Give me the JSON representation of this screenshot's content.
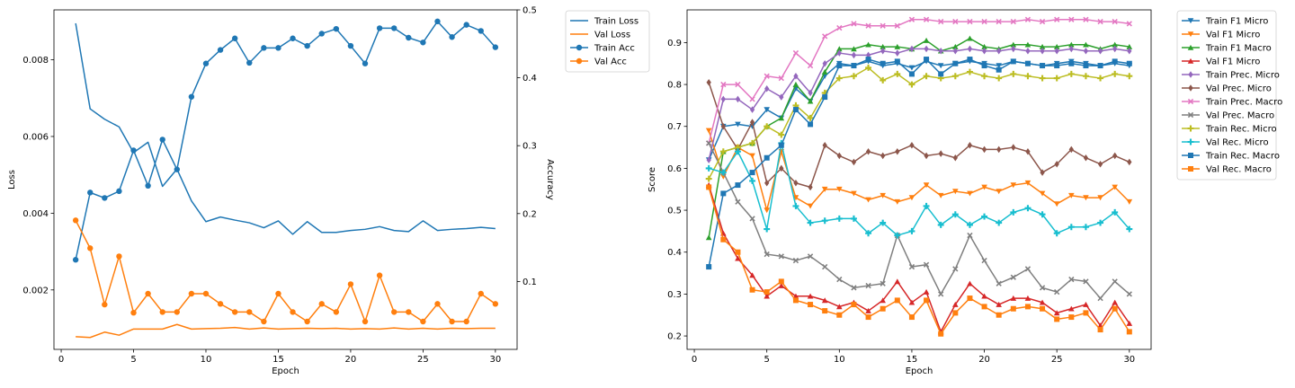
{
  "colors": {
    "blue": "#1f77b4",
    "orange": "#ff7f0e",
    "green": "#2ca02c",
    "red": "#d62728",
    "purple": "#9467bd",
    "brown": "#8c564b",
    "pink": "#e377c2",
    "gray": "#7f7f7f",
    "olive": "#bcbd22",
    "cyan": "#17becf"
  },
  "chart_data": [
    {
      "type": "line",
      "xlabel": "Epoch",
      "ylabel": "Loss",
      "y2label": "Accuracy",
      "xlim": [
        -0.5,
        31.5
      ],
      "ylim": [
        0.00045,
        0.0093
      ],
      "y2lim": [
        0,
        0.5
      ],
      "xticks": [
        0,
        5,
        10,
        15,
        20,
        25,
        30
      ],
      "yticks": [
        0.002,
        0.004,
        0.006,
        0.008
      ],
      "ytick_labels": [
        "0.002",
        "0.004",
        "0.006",
        "0.008"
      ],
      "y2ticks": [
        0.1,
        0.2,
        0.3,
        0.4,
        0.5
      ],
      "y2tick_labels": [
        "0.1",
        "0.2",
        "0.3",
        "0.4",
        "0.5"
      ],
      "legend_position": "outside-right",
      "x": [
        1,
        2,
        3,
        4,
        5,
        6,
        7,
        8,
        9,
        10,
        11,
        12,
        13,
        14,
        15,
        16,
        17,
        18,
        19,
        20,
        21,
        22,
        23,
        24,
        25,
        26,
        27,
        28,
        29,
        30
      ],
      "series": [
        {
          "name": "Train Loss",
          "axis": "left",
          "color": "blue",
          "marker": "none",
          "values": [
            0.00895,
            0.00672,
            0.00645,
            0.00625,
            0.00558,
            0.00585,
            0.0047,
            0.00515,
            0.00432,
            0.00378,
            0.0039,
            0.00382,
            0.00375,
            0.00362,
            0.0038,
            0.00345,
            0.00378,
            0.0035,
            0.0035,
            0.00355,
            0.00358,
            0.00365,
            0.00355,
            0.00352,
            0.0038,
            0.00355,
            0.00358,
            0.0036,
            0.00363,
            0.0036
          ]
        },
        {
          "name": "Val Loss",
          "axis": "left",
          "color": "orange",
          "marker": "none",
          "values": [
            0.00078,
            0.00076,
            0.0009,
            0.00082,
            0.00098,
            0.00098,
            0.00098,
            0.0011,
            0.00098,
            0.00099,
            0.001,
            0.00102,
            0.00098,
            0.00101,
            0.00098,
            0.00099,
            0.001,
            0.00099,
            0.001,
            0.00098,
            0.00099,
            0.00098,
            0.00101,
            0.00098,
            0.001,
            0.00098,
            0.001,
            0.00099,
            0.001,
            0.001
          ]
        },
        {
          "name": "Train Acc",
          "axis": "right",
          "color": "blue",
          "marker": "circle",
          "values": [
            0.132,
            0.231,
            0.223,
            0.233,
            0.293,
            0.241,
            0.309,
            0.265,
            0.372,
            0.421,
            0.441,
            0.458,
            0.422,
            0.444,
            0.444,
            0.458,
            0.447,
            0.465,
            0.472,
            0.447,
            0.421,
            0.473,
            0.473,
            0.459,
            0.452,
            0.483,
            0.46,
            0.478,
            0.469,
            0.445
          ]
        },
        {
          "name": "Val Acc",
          "axis": "right",
          "color": "orange",
          "marker": "circle",
          "values": [
            0.19,
            0.149,
            0.066,
            0.137,
            0.054,
            0.082,
            0.055,
            0.055,
            0.082,
            0.082,
            0.067,
            0.055,
            0.055,
            0.041,
            0.082,
            0.055,
            0.041,
            0.067,
            0.055,
            0.096,
            0.041,
            0.109,
            0.055,
            0.055,
            0.041,
            0.067,
            0.041,
            0.041,
            0.082,
            0.067
          ]
        }
      ]
    },
    {
      "type": "line",
      "xlabel": "Epoch",
      "ylabel": "Score",
      "xlim": [
        -0.5,
        31.5
      ],
      "ylim": [
        0.168,
        0.978
      ],
      "xticks": [
        0,
        5,
        10,
        15,
        20,
        25,
        30
      ],
      "yticks": [
        0.2,
        0.3,
        0.4,
        0.5,
        0.6,
        0.7,
        0.8,
        0.9
      ],
      "ytick_labels": [
        "0.2",
        "0.3",
        "0.4",
        "0.5",
        "0.6",
        "0.7",
        "0.8",
        "0.9"
      ],
      "legend_position": "outside-right",
      "x": [
        1,
        2,
        3,
        4,
        5,
        6,
        7,
        8,
        9,
        10,
        11,
        12,
        13,
        14,
        15,
        16,
        17,
        18,
        19,
        20,
        21,
        22,
        23,
        24,
        25,
        26,
        27,
        28,
        29,
        30
      ],
      "series": [
        {
          "name": "Train F1 Micro",
          "color": "blue",
          "marker": "tri_down",
          "values": [
            0.62,
            0.7,
            0.705,
            0.7,
            0.74,
            0.72,
            0.79,
            0.76,
            0.82,
            0.85,
            0.845,
            0.855,
            0.845,
            0.85,
            0.84,
            0.855,
            0.845,
            0.85,
            0.855,
            0.85,
            0.845,
            0.855,
            0.85,
            0.845,
            0.85,
            0.855,
            0.85,
            0.845,
            0.85,
            0.845
          ]
        },
        {
          "name": "Val F1 Micro",
          "color": "orange",
          "marker": "tri_down",
          "values": [
            0.69,
            0.58,
            0.65,
            0.63,
            0.5,
            0.64,
            0.53,
            0.51,
            0.55,
            0.55,
            0.54,
            0.525,
            0.535,
            0.52,
            0.53,
            0.56,
            0.535,
            0.545,
            0.54,
            0.555,
            0.545,
            0.56,
            0.565,
            0.54,
            0.515,
            0.535,
            0.53,
            0.53,
            0.555,
            0.52
          ]
        },
        {
          "name": "Train F1 Macro",
          "color": "green",
          "marker": "tri_up",
          "values": [
            0.435,
            0.64,
            0.65,
            0.66,
            0.7,
            0.72,
            0.8,
            0.76,
            0.83,
            0.885,
            0.885,
            0.895,
            0.89,
            0.89,
            0.885,
            0.905,
            0.88,
            0.89,
            0.91,
            0.89,
            0.885,
            0.895,
            0.895,
            0.89,
            0.89,
            0.895,
            0.895,
            0.885,
            0.895,
            0.89
          ]
        },
        {
          "name": "Val F1 Micro",
          "color": "red",
          "marker": "tri_up",
          "values": [
            0.56,
            0.445,
            0.385,
            0.345,
            0.295,
            0.32,
            0.295,
            0.295,
            0.285,
            0.27,
            0.28,
            0.26,
            0.285,
            0.33,
            0.28,
            0.305,
            0.21,
            0.275,
            0.325,
            0.295,
            0.275,
            0.29,
            0.29,
            0.28,
            0.255,
            0.265,
            0.275,
            0.225,
            0.28,
            0.23
          ]
        },
        {
          "name": "Train Prec. Micro",
          "color": "purple",
          "marker": "diamond",
          "values": [
            0.62,
            0.765,
            0.765,
            0.74,
            0.79,
            0.77,
            0.82,
            0.78,
            0.85,
            0.875,
            0.87,
            0.87,
            0.88,
            0.875,
            0.885,
            0.885,
            0.88,
            0.88,
            0.885,
            0.88,
            0.88,
            0.885,
            0.88,
            0.88,
            0.88,
            0.885,
            0.88,
            0.88,
            0.885,
            0.88
          ]
        },
        {
          "name": "Val Prec. Micro",
          "color": "brown",
          "marker": "diamond",
          "values": [
            0.805,
            0.7,
            0.645,
            0.71,
            0.565,
            0.6,
            0.565,
            0.555,
            0.655,
            0.63,
            0.615,
            0.64,
            0.63,
            0.64,
            0.655,
            0.63,
            0.635,
            0.625,
            0.655,
            0.645,
            0.645,
            0.65,
            0.64,
            0.59,
            0.61,
            0.645,
            0.625,
            0.61,
            0.63,
            0.615
          ]
        },
        {
          "name": "Train Prec. Macro",
          "color": "pink",
          "marker": "x",
          "values": [
            0.66,
            0.8,
            0.8,
            0.765,
            0.82,
            0.815,
            0.875,
            0.845,
            0.915,
            0.935,
            0.945,
            0.94,
            0.94,
            0.94,
            0.955,
            0.955,
            0.95,
            0.95,
            0.95,
            0.95,
            0.95,
            0.95,
            0.955,
            0.95,
            0.955,
            0.955,
            0.955,
            0.95,
            0.95,
            0.945
          ]
        },
        {
          "name": "Val Prec. Macro",
          "color": "gray",
          "marker": "x",
          "values": [
            0.66,
            0.59,
            0.52,
            0.48,
            0.395,
            0.39,
            0.38,
            0.39,
            0.365,
            0.335,
            0.315,
            0.32,
            0.325,
            0.44,
            0.365,
            0.37,
            0.3,
            0.36,
            0.44,
            0.38,
            0.325,
            0.34,
            0.36,
            0.315,
            0.305,
            0.335,
            0.33,
            0.29,
            0.33,
            0.3
          ]
        },
        {
          "name": "Train Rec. Micro",
          "color": "olive",
          "marker": "plus",
          "values": [
            0.575,
            0.64,
            0.65,
            0.66,
            0.7,
            0.68,
            0.75,
            0.72,
            0.78,
            0.815,
            0.82,
            0.84,
            0.81,
            0.825,
            0.8,
            0.82,
            0.815,
            0.82,
            0.83,
            0.82,
            0.815,
            0.825,
            0.82,
            0.815,
            0.815,
            0.825,
            0.82,
            0.815,
            0.825,
            0.82
          ]
        },
        {
          "name": "Val Rec. Micro",
          "color": "cyan",
          "marker": "plus",
          "values": [
            0.6,
            0.59,
            0.64,
            0.57,
            0.455,
            0.66,
            0.51,
            0.47,
            0.475,
            0.48,
            0.48,
            0.445,
            0.47,
            0.44,
            0.45,
            0.51,
            0.465,
            0.49,
            0.465,
            0.485,
            0.47,
            0.495,
            0.505,
            0.49,
            0.445,
            0.46,
            0.46,
            0.47,
            0.495,
            0.455
          ]
        },
        {
          "name": "Train Rec. Macro",
          "color": "blue",
          "marker": "square",
          "values": [
            0.365,
            0.54,
            0.56,
            0.59,
            0.625,
            0.655,
            0.74,
            0.705,
            0.77,
            0.845,
            0.845,
            0.86,
            0.85,
            0.855,
            0.825,
            0.86,
            0.825,
            0.85,
            0.86,
            0.845,
            0.835,
            0.855,
            0.85,
            0.845,
            0.845,
            0.85,
            0.845,
            0.845,
            0.855,
            0.85
          ]
        },
        {
          "name": "Val Rec. Macro",
          "color": "orange",
          "marker": "square",
          "values": [
            0.555,
            0.43,
            0.4,
            0.31,
            0.305,
            0.33,
            0.285,
            0.275,
            0.26,
            0.25,
            0.275,
            0.245,
            0.265,
            0.285,
            0.245,
            0.285,
            0.205,
            0.255,
            0.29,
            0.27,
            0.25,
            0.265,
            0.27,
            0.265,
            0.24,
            0.245,
            0.255,
            0.215,
            0.265,
            0.21
          ]
        }
      ]
    }
  ]
}
